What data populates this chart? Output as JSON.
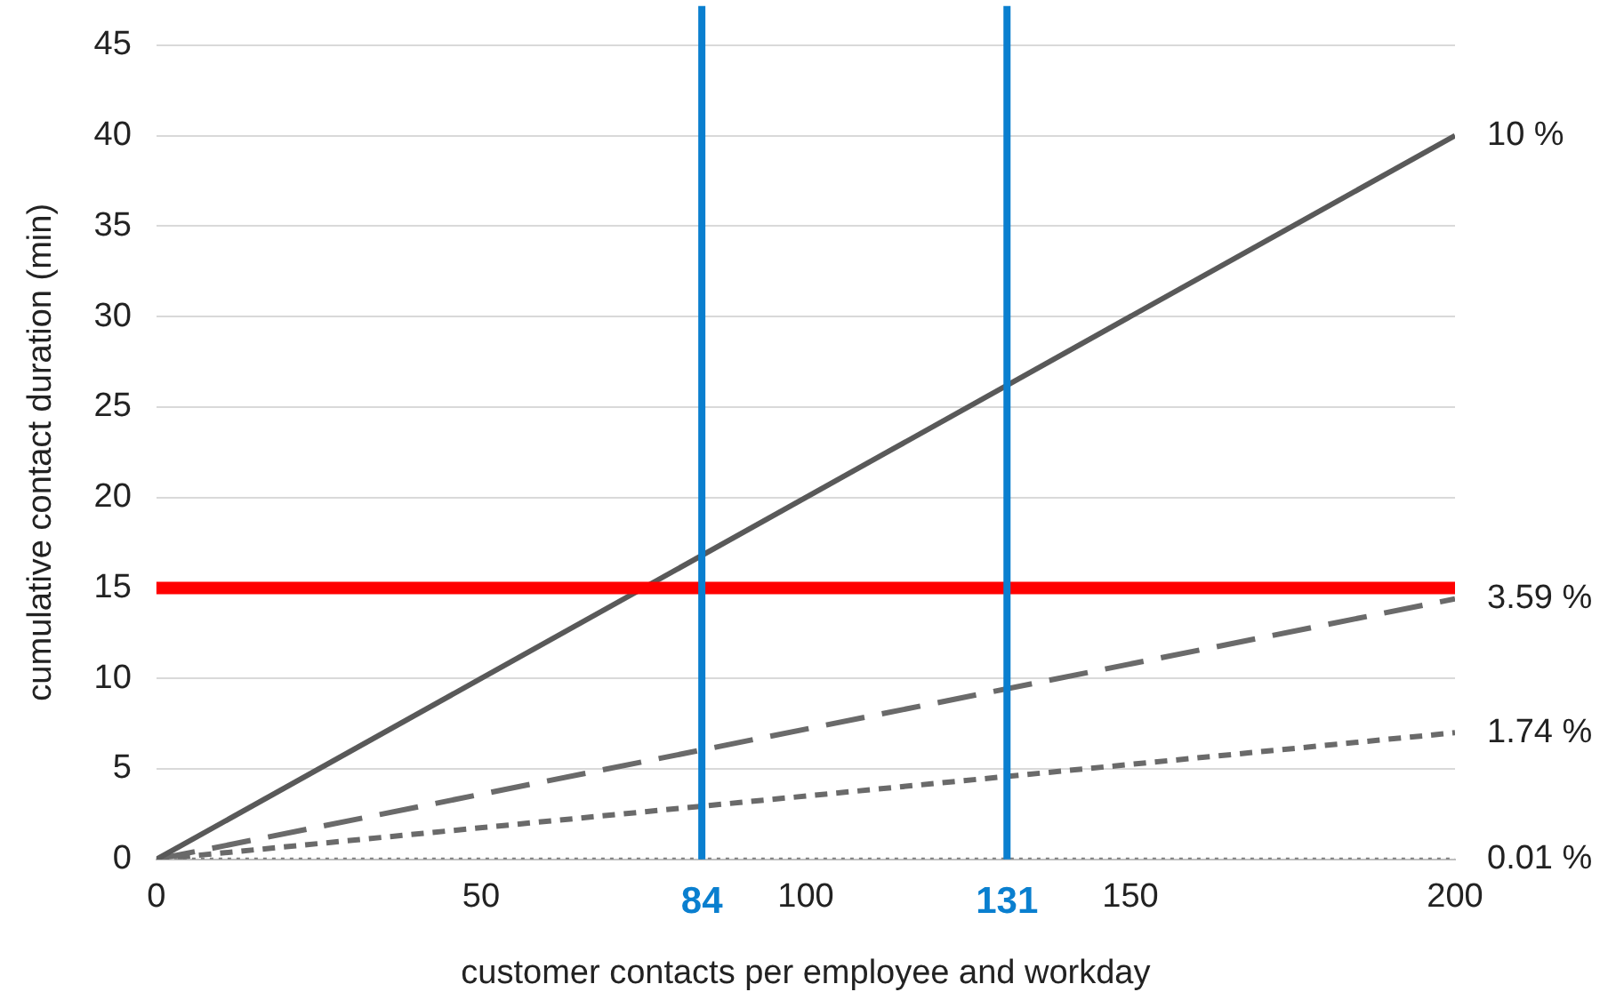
{
  "chart_data": {
    "type": "line",
    "xlabel": "customer contacts per employee and workday",
    "ylabel": "cumulative contact duration (min)",
    "x": [
      0,
      200
    ],
    "series": [
      {
        "name": "10 %",
        "color": "#595959",
        "values": [
          0,
          40
        ],
        "line_style": "solid"
      },
      {
        "name": "3.59 %",
        "color": "#6a6a6a",
        "values": [
          0,
          14.4
        ],
        "line_style": "dashed"
      },
      {
        "name": "1.74 %",
        "color": "#6a6a6a",
        "values": [
          0,
          7
        ],
        "line_style": "short_dashed"
      },
      {
        "name": "0.01 %",
        "color": "#7f7f7f",
        "values": [
          0,
          0
        ],
        "line_style": "dotted"
      }
    ],
    "xlim": [
      0,
      200
    ],
    "xticks": [
      0,
      50,
      100,
      150,
      200
    ],
    "ylim": [
      0,
      45
    ],
    "yticks": [
      0,
      5,
      10,
      15,
      20,
      25,
      30,
      35,
      40,
      45
    ],
    "grid": "y",
    "legend": false,
    "marker": "none",
    "ref_lines": [
      {
        "axis": "y",
        "value": 15,
        "color": "#ff0000"
      },
      {
        "axis": "x",
        "value": 84,
        "label": "84",
        "color": "#0a7fcf"
      },
      {
        "axis": "x",
        "value": 131,
        "label": "131",
        "color": "#0a7fcf"
      }
    ]
  }
}
